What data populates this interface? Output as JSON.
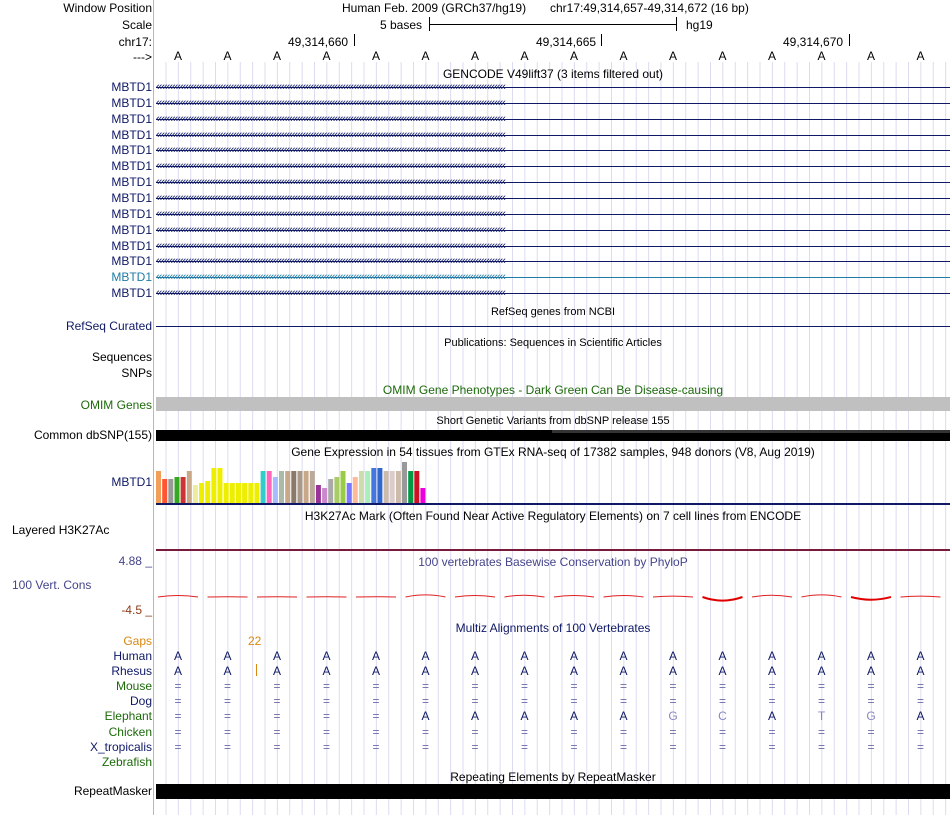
{
  "header": {
    "labels": [
      "Window Position",
      "Scale",
      "chr17:",
      "--->"
    ],
    "assembly": "Human Feb. 2009 (GRCh37/hg19)",
    "position": "chr17:49,314,657-49,314,672 (16 bp)",
    "scale_text": "5 bases",
    "scale_db": "hg19",
    "coords": [
      "49,314,660",
      "49,314,665",
      "49,314,670"
    ],
    "bases": [
      "A",
      "A",
      "A",
      "A",
      "A",
      "A",
      "A",
      "A",
      "A",
      "A",
      "A",
      "A",
      "A",
      "A",
      "A",
      "A"
    ]
  },
  "gencode": {
    "title": "GENCODE V49lift37 (3 items filtered out)",
    "genes": [
      "MBTD1",
      "MBTD1",
      "MBTD1",
      "MBTD1",
      "MBTD1",
      "MBTD1",
      "MBTD1",
      "MBTD1",
      "MBTD1",
      "MBTD1",
      "MBTD1",
      "MBTD1",
      "MBTD1",
      "MBTD1"
    ],
    "highlight_index": 12,
    "arrows": "‹‹‹‹‹‹‹‹‹‹‹‹‹‹‹‹‹‹‹‹‹‹‹‹‹‹‹‹‹‹‹‹‹‹‹‹‹‹‹‹‹‹‹‹‹‹‹‹‹‹‹‹‹‹‹‹‹‹‹‹‹‹‹‹‹‹‹‹‹‹‹‹‹‹‹‹‹‹‹‹‹‹‹‹‹‹‹‹‹‹‹‹‹‹‹‹‹‹‹‹‹‹‹‹‹‹‹‹‹‹‹‹‹‹‹‹‹‹‹‹‹‹‹‹‹‹‹‹‹‹‹"
  },
  "refseq": {
    "title": "RefSeq genes from NCBI",
    "label": "RefSeq Curated"
  },
  "publications": {
    "title": "Publications: Sequences in Scientific Articles",
    "labels": [
      "Sequences",
      "SNPs"
    ]
  },
  "omim": {
    "title": "OMIM Gene Phenotypes - Dark Green Can Be Disease-causing",
    "label": "OMIM Genes"
  },
  "dbsnp": {
    "title": "Short Genetic Variants from dbSNP release 155",
    "label": "Common dbSNP(155)"
  },
  "gtex": {
    "title": "Gene Expression in 54 tissues from GTEx RNA-seq of 17382 samples, 948 donors (V8, Aug 2019)",
    "label": "MBTD1",
    "bars": [
      {
        "v": 0.79,
        "c": "#f2a059"
      },
      {
        "v": 0.59,
        "c": "#ff5533"
      },
      {
        "v": 0.59,
        "c": "#999999"
      },
      {
        "v": 0.65,
        "c": "#33aa22"
      },
      {
        "v": 0.65,
        "c": "#cc3333"
      },
      {
        "v": 0.79,
        "c": "#c9a88a"
      },
      {
        "v": 0.45,
        "c": "#ededa0"
      },
      {
        "v": 0.51,
        "c": "#eeee00"
      },
      {
        "v": 0.54,
        "c": "#eeee00"
      },
      {
        "v": 0.86,
        "c": "#eeee00"
      },
      {
        "v": 0.86,
        "c": "#eeee00"
      },
      {
        "v": 0.51,
        "c": "#eeee00"
      },
      {
        "v": 0.51,
        "c": "#eeee00"
      },
      {
        "v": 0.51,
        "c": "#eeee00"
      },
      {
        "v": 0.51,
        "c": "#eeee00"
      },
      {
        "v": 0.51,
        "c": "#eeee00"
      },
      {
        "v": 0.51,
        "c": "#eeee00"
      },
      {
        "v": 0.79,
        "c": "#33cccc"
      },
      {
        "v": 0.79,
        "c": "#ff66bb"
      },
      {
        "v": 0.65,
        "c": "#aabbff"
      },
      {
        "v": 0.79,
        "c": "#aabbaa"
      },
      {
        "v": 0.79,
        "c": "#c9a88a"
      },
      {
        "v": 0.79,
        "c": "#8a7a6a"
      },
      {
        "v": 0.79,
        "c": "#aa9988"
      },
      {
        "v": 0.79,
        "c": "#c9a88a"
      },
      {
        "v": 0.79,
        "c": "#bbaa99"
      },
      {
        "v": 0.45,
        "c": "#993399"
      },
      {
        "v": 0.37,
        "c": "#cc88cc"
      },
      {
        "v": 0.59,
        "c": "#aaaaaa"
      },
      {
        "v": 0.65,
        "c": "#aacc66"
      },
      {
        "v": 0.79,
        "c": "#99cc44"
      },
      {
        "v": 0.51,
        "c": "#7777ff"
      },
      {
        "v": 0.65,
        "c": "#ffbb99"
      },
      {
        "v": 0.79,
        "c": "#ccddaa"
      },
      {
        "v": 0.79,
        "c": "#aaeebb"
      },
      {
        "v": 0.86,
        "c": "#4477dd"
      },
      {
        "v": 0.86,
        "c": "#3366cc"
      },
      {
        "v": 0.79,
        "c": "#ccbbaa"
      },
      {
        "v": 0.79,
        "c": "#ddcccc"
      },
      {
        "v": 0.79,
        "c": "#ccbbaa"
      },
      {
        "v": 1.0,
        "c": "#999999"
      },
      {
        "v": 0.79,
        "c": "#009944"
      },
      {
        "v": 0.79,
        "c": "#cc1122"
      },
      {
        "v": 0.37,
        "c": "#ee00dd"
      }
    ]
  },
  "h3k27ac": {
    "title": "H3K27Ac Mark (Often Found Near Active Regulatory Elements) on 7 cell lines from ENCODE",
    "label": "Layered H3K27Ac"
  },
  "phylop": {
    "title": "100 vertebrates Basewise Conservation by PhyloP",
    "label": "100 Vert. Cons",
    "max_label": "4.88 _",
    "min_label": "-4.5 _",
    "ymin": -4.5,
    "ymax": 4.88,
    "scores": [
      0.25,
      0.05,
      0.05,
      0.05,
      0.05,
      0.35,
      0.25,
      0.3,
      0.25,
      0.25,
      0.15,
      -0.6,
      0.3,
      0.35,
      -0.45,
      0.15
    ]
  },
  "multiz": {
    "title": "Multiz Alignments of 100 Vertebrates",
    "gaps_label": "Gaps",
    "gap_count": "22",
    "species": [
      {
        "name": "Human",
        "color": "#0f1966",
        "seq": [
          "A",
          "A",
          "A",
          "A",
          "A",
          "A",
          "A",
          "A",
          "A",
          "A",
          "A",
          "A",
          "A",
          "A",
          "A",
          "A"
        ]
      },
      {
        "name": "Rhesus",
        "color": "#0f1966",
        "seq": [
          "A",
          "A",
          "A",
          "A",
          "A",
          "A",
          "A",
          "A",
          "A",
          "A",
          "A",
          "A",
          "A",
          "A",
          "A",
          "A"
        ]
      },
      {
        "name": "Mouse",
        "color": "#1c6a0a",
        "seq": [
          "=",
          "=",
          "=",
          "=",
          "=",
          "=",
          "=",
          "=",
          "=",
          "=",
          "=",
          "=",
          "=",
          "=",
          "=",
          "="
        ]
      },
      {
        "name": "Dog",
        "color": "#0f1966",
        "seq": [
          "=",
          "=",
          "=",
          "=",
          "=",
          "=",
          "=",
          "=",
          "=",
          "=",
          "=",
          "=",
          "=",
          "=",
          "=",
          "="
        ]
      },
      {
        "name": "Elephant",
        "color": "#1c6a0a",
        "seq": [
          "=",
          "=",
          "=",
          "=",
          "=",
          "A",
          "A",
          "A",
          "A",
          "A",
          "G",
          "C",
          "A",
          "T",
          "G",
          "A"
        ]
      },
      {
        "name": "Chicken",
        "color": "#1c6a0a",
        "seq": [
          "=",
          "=",
          "=",
          "=",
          "=",
          "=",
          "=",
          "=",
          "=",
          "=",
          "=",
          "=",
          "=",
          "=",
          "=",
          "="
        ]
      },
      {
        "name": "X_tropicalis",
        "color": "#0f1966",
        "seq": [
          "=",
          "=",
          "=",
          "=",
          "=",
          "=",
          "=",
          "=",
          "=",
          "=",
          "=",
          "=",
          "=",
          "=",
          "=",
          "="
        ]
      },
      {
        "name": "Zebrafish",
        "color": "#1c6a0a",
        "seq": []
      }
    ]
  },
  "repeatmasker": {
    "title": "Repeating Elements by RepeatMasker",
    "label": "RepeatMasker"
  }
}
